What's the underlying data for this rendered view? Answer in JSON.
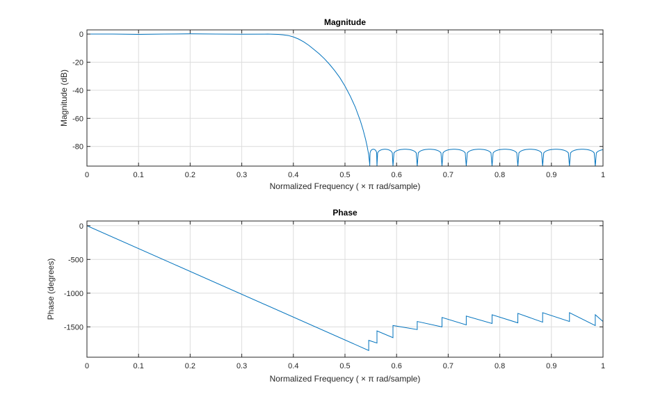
{
  "chart_data": [
    {
      "type": "line",
      "title": "Magnitude",
      "xlabel": "Normalized Frequency  ( × π rad/sample)",
      "ylabel": "Magnitude (dB)",
      "xlim": [
        0,
        1
      ],
      "ylim": [
        -94,
        3
      ],
      "xticks": [
        0,
        0.1,
        0.2,
        0.3,
        0.4,
        0.5,
        0.6,
        0.7,
        0.8,
        0.9,
        1
      ],
      "xtick_labels": [
        "0",
        "0.1",
        "0.2",
        "0.3",
        "0.4",
        "0.5",
        "0.6",
        "0.7",
        "0.8",
        "0.9",
        "1"
      ],
      "yticks": [
        0,
        -20,
        -40,
        -60,
        -80
      ],
      "ytick_labels": [
        "0",
        "-20",
        "-40",
        "-60",
        "-80"
      ],
      "grid": true,
      "color": "#0072bd",
      "series": [
        {
          "x": [
            0,
            0.05,
            0.1,
            0.15,
            0.2,
            0.25,
            0.3,
            0.35,
            0.37,
            0.38,
            0.39,
            0.4,
            0.41,
            0.42,
            0.43,
            0.44,
            0.45,
            0.46,
            0.47,
            0.48,
            0.49,
            0.5,
            0.51,
            0.52,
            0.53,
            0.535,
            0.54,
            0.543,
            0.546,
            0.548
          ],
          "y": [
            0,
            0,
            -0.2,
            0,
            0.2,
            0,
            -0.1,
            0,
            -0.2,
            -0.5,
            -1,
            -2,
            -3.5,
            -5.5,
            -8,
            -11,
            -14,
            -17.5,
            -21.5,
            -26,
            -31,
            -37,
            -44,
            -52,
            -62,
            -68,
            -75,
            -80,
            -86,
            -93
          ]
        }
      ],
      "lobes": [
        {
          "start": 0.548,
          "end": 0.562,
          "peak": -82
        },
        {
          "start": 0.562,
          "end": 0.593,
          "peak": -82
        },
        {
          "start": 0.593,
          "end": 0.64,
          "peak": -82
        },
        {
          "start": 0.64,
          "end": 0.688,
          "peak": -82
        },
        {
          "start": 0.688,
          "end": 0.735,
          "peak": -82
        },
        {
          "start": 0.735,
          "end": 0.785,
          "peak": -82
        },
        {
          "start": 0.785,
          "end": 0.835,
          "peak": -82
        },
        {
          "start": 0.835,
          "end": 0.883,
          "peak": -82
        },
        {
          "start": 0.883,
          "end": 0.935,
          "peak": -82
        },
        {
          "start": 0.935,
          "end": 0.985,
          "peak": -82
        },
        {
          "start": 0.985,
          "end": 1.035,
          "peak": -82
        }
      ]
    },
    {
      "type": "line",
      "title": "Phase",
      "xlabel": "Normalized Frequency  ( × π rad/sample)",
      "ylabel": "Phase (degrees)",
      "xlim": [
        0,
        1
      ],
      "ylim": [
        -1950,
        70
      ],
      "xticks": [
        0,
        0.1,
        0.2,
        0.3,
        0.4,
        0.5,
        0.6,
        0.7,
        0.8,
        0.9,
        1
      ],
      "xtick_labels": [
        "0",
        "0.1",
        "0.2",
        "0.3",
        "0.4",
        "0.5",
        "0.6",
        "0.7",
        "0.8",
        "0.9",
        "1"
      ],
      "yticks": [
        0,
        -500,
        -1000,
        -1500
      ],
      "ytick_labels": [
        "0",
        "-500",
        "-1000",
        "-1500"
      ],
      "grid": true,
      "color": "#0072bd",
      "series": [
        {
          "x": [
            0,
            0.546,
            0.546,
            0.562,
            0.562,
            0.593,
            0.593,
            0.64,
            0.64,
            0.688,
            0.688,
            0.735,
            0.735,
            0.785,
            0.785,
            0.835,
            0.835,
            0.883,
            0.883,
            0.935,
            0.935,
            0.985,
            0.985,
            1.0
          ],
          "y": [
            0,
            -1850,
            -1700,
            -1740,
            -1560,
            -1660,
            -1480,
            -1540,
            -1420,
            -1500,
            -1360,
            -1470,
            -1340,
            -1450,
            -1320,
            -1440,
            -1300,
            -1430,
            -1290,
            -1420,
            -1290,
            -1480,
            -1320,
            -1420
          ]
        }
      ]
    }
  ]
}
